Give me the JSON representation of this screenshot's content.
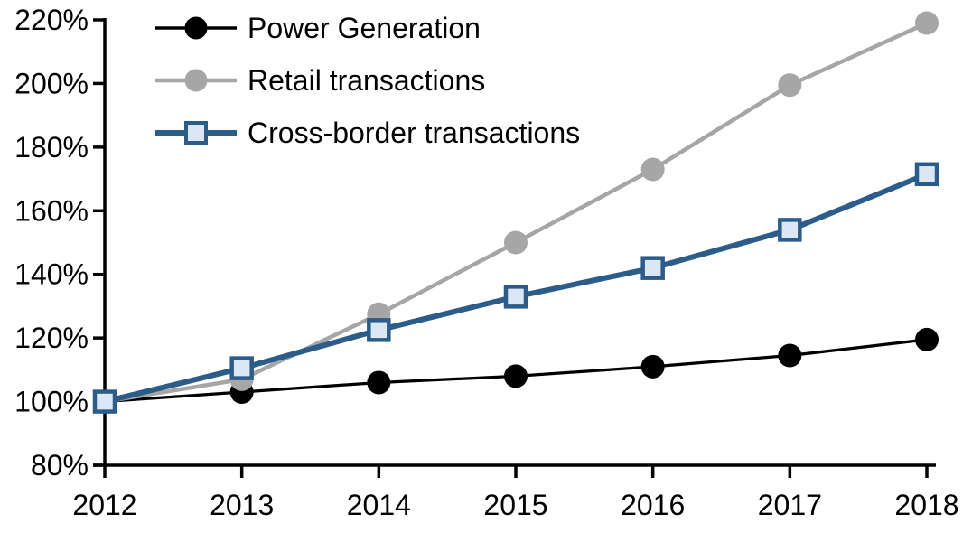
{
  "chart_data": {
    "type": "line",
    "title": "",
    "xlabel": "",
    "ylabel": "",
    "categories": [
      "2012",
      "2013",
      "2014",
      "2015",
      "2016",
      "2017",
      "2018"
    ],
    "series": [
      {
        "name": "Power Generation",
        "line_color": "#000000",
        "marker": "circle",
        "marker_fill": "#000000",
        "values": [
          100,
          103,
          106,
          108,
          111,
          114.5,
          119.5
        ]
      },
      {
        "name": "Retail transactions",
        "line_color": "#a6a6a6",
        "marker": "circle",
        "marker_fill": "#a6a6a6",
        "values": [
          100,
          107,
          127.5,
          150,
          173,
          199.5,
          219
        ]
      },
      {
        "name": "Cross-border transactions",
        "line_color": "#2c5c8a",
        "marker": "square",
        "marker_fill": "#dbe8f4",
        "marker_border": "#2c5c8a",
        "values": [
          100,
          110.5,
          122.5,
          133,
          142,
          154,
          171.5
        ]
      }
    ],
    "ylim": [
      80,
      220
    ],
    "ytick_step": 20,
    "y_tick_labels": [
      "80%",
      "100%",
      "120%",
      "140%",
      "160%",
      "180%",
      "200%",
      "220%"
    ],
    "x_tick_labels": [
      "2012",
      "2013",
      "2014",
      "2015",
      "2016",
      "2017",
      "2018"
    ],
    "unit": "percent",
    "grid": false,
    "legend_position": "top-left",
    "axis_color": "#000000",
    "background_color": "#ffffff"
  }
}
